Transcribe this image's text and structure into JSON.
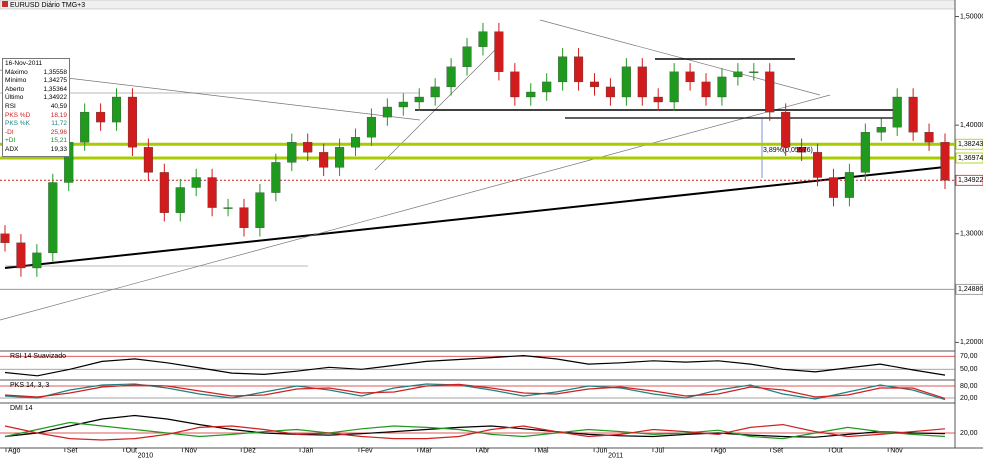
{
  "chart_data": [
    {
      "type": "candlestick",
      "title": "EURUSD Diário TMG+3",
      "categories": [
        "Ago",
        "Set",
        "Out",
        "Nov",
        "Dez",
        "Jan",
        "Fev",
        "Mar",
        "Abr",
        "Mai",
        "Jun",
        "Jul",
        "Ago",
        "Set",
        "Out",
        "Nov"
      ],
      "x_year_labels": [
        "2010",
        "2011"
      ],
      "up_color": "#1f9a1f",
      "down_color": "#d01c1c",
      "ohlc": [
        [
          1.3,
          1.308,
          1.2837,
          1.2917
        ],
        [
          1.2917,
          1.2997,
          1.2605,
          1.2685
        ],
        [
          1.2685,
          1.2904,
          1.2605,
          1.2824
        ],
        [
          1.2824,
          1.3552,
          1.2744,
          1.3472
        ],
        [
          1.3472,
          1.3923,
          1.3392,
          1.3843
        ],
        [
          1.3843,
          1.42,
          1.3763,
          1.412
        ],
        [
          1.412,
          1.42,
          1.3948,
          1.4028
        ],
        [
          1.4028,
          1.4339,
          1.3948,
          1.4259
        ],
        [
          1.4259,
          1.4339,
          1.3716,
          1.3796
        ],
        [
          1.3796,
          1.3876,
          1.3485,
          1.3565
        ],
        [
          1.3565,
          1.3645,
          1.3114,
          1.3194
        ],
        [
          1.3194,
          1.3506,
          1.3114,
          1.3426
        ],
        [
          1.3426,
          1.3598,
          1.3346,
          1.3518
        ],
        [
          1.3518,
          1.3598,
          1.3161,
          1.3241
        ],
        [
          1.3241,
          1.3321,
          1.3161,
          1.3241
        ],
        [
          1.3241,
          1.3321,
          1.2975,
          1.3055
        ],
        [
          1.3055,
          1.3459,
          1.2975,
          1.3379
        ],
        [
          1.3379,
          1.3737,
          1.3299,
          1.3657
        ],
        [
          1.3657,
          1.3923,
          1.3577,
          1.3843
        ],
        [
          1.3843,
          1.3923,
          1.367,
          1.375
        ],
        [
          1.375,
          1.383,
          1.3531,
          1.3611
        ],
        [
          1.3611,
          1.3876,
          1.3531,
          1.3796
        ],
        [
          1.3796,
          1.3969,
          1.3716,
          1.3889
        ],
        [
          1.3889,
          1.4154,
          1.3809,
          1.4074
        ],
        [
          1.4074,
          1.4247,
          1.3994,
          1.4167
        ],
        [
          1.4167,
          1.4293,
          1.4087,
          1.4213
        ],
        [
          1.4213,
          1.4339,
          1.4133,
          1.4259
        ],
        [
          1.4259,
          1.4432,
          1.4179,
          1.4352
        ],
        [
          1.4352,
          1.4617,
          1.4272,
          1.4537
        ],
        [
          1.4537,
          1.4802,
          1.4457,
          1.4722
        ],
        [
          1.4722,
          1.4941,
          1.4642,
          1.4861
        ],
        [
          1.4861,
          1.4941,
          1.4411,
          1.4491
        ],
        [
          1.4491,
          1.4571,
          1.4179,
          1.4259
        ],
        [
          1.4259,
          1.4385,
          1.4179,
          1.4305
        ],
        [
          1.4305,
          1.4478,
          1.4225,
          1.4398
        ],
        [
          1.4398,
          1.471,
          1.4318,
          1.463
        ],
        [
          1.463,
          1.471,
          1.4318,
          1.4398
        ],
        [
          1.4398,
          1.4478,
          1.4272,
          1.4352
        ],
        [
          1.4352,
          1.4432,
          1.4179,
          1.4259
        ],
        [
          1.4259,
          1.4617,
          1.4179,
          1.4537
        ],
        [
          1.4537,
          1.4617,
          1.4179,
          1.4259
        ],
        [
          1.4259,
          1.4339,
          1.4133,
          1.4213
        ],
        [
          1.4213,
          1.4571,
          1.4133,
          1.4491
        ],
        [
          1.4491,
          1.4571,
          1.4318,
          1.4398
        ],
        [
          1.4398,
          1.4478,
          1.4179,
          1.4259
        ],
        [
          1.4259,
          1.4524,
          1.4179,
          1.4444
        ],
        [
          1.4444,
          1.4571,
          1.4364,
          1.4491
        ],
        [
          1.4491,
          1.4571,
          1.4411,
          1.4491
        ],
        [
          1.4491,
          1.4571,
          1.404,
          1.412
        ],
        [
          1.412,
          1.42,
          1.3716,
          1.3796
        ],
        [
          1.3796,
          1.3876,
          1.367,
          1.375
        ],
        [
          1.375,
          1.383,
          1.3438,
          1.3518
        ],
        [
          1.3518,
          1.3598,
          1.3253,
          1.3333
        ],
        [
          1.3333,
          1.3645,
          1.3253,
          1.3565
        ],
        [
          1.3565,
          1.4015,
          1.3485,
          1.3935
        ],
        [
          1.3935,
          1.4061,
          1.3855,
          1.3981
        ],
        [
          1.3981,
          1.4339,
          1.3901,
          1.4259
        ],
        [
          1.4259,
          1.4339,
          1.3855,
          1.3935
        ],
        [
          1.3935,
          1.4015,
          1.3763,
          1.3843
        ],
        [
          1.3843,
          1.3923,
          1.3412,
          1.3492
        ]
      ],
      "ylim": [
        1.193,
        1.506
      ],
      "yticks": [
        {
          "value": 1.5,
          "label": "1,50000"
        },
        {
          "value": 1.4,
          "label": "1,40000"
        },
        {
          "value": 1.3,
          "label": "1,30000"
        },
        {
          "value": 1.2,
          "label": "1,20000"
        }
      ],
      "levels": [
        {
          "value": 1.38243,
          "label": "1,38243",
          "color": "#a8cc00"
        },
        {
          "value": 1.36974,
          "label": "1,36974",
          "color": "#a8cc00"
        },
        {
          "value": 1.34922,
          "label": "1,34922",
          "color": "#d02020"
        },
        {
          "value": 1.24886,
          "label": "1,24886",
          "color": "#888888"
        }
      ],
      "annotations": [
        "3,89%(0,05576)"
      ]
    },
    {
      "type": "line",
      "title": "RSI 14 Suavizado",
      "ylim": [
        35,
        75
      ],
      "yticks": [
        {
          "value": 70,
          "label": "70,00"
        },
        {
          "value": 50,
          "label": "50,00"
        }
      ],
      "series": [
        {
          "color": "#000000",
          "values": [
            45,
            40,
            50,
            62,
            66,
            60,
            52,
            44,
            42,
            47,
            53,
            50,
            56,
            62,
            65,
            68,
            71,
            66,
            58,
            60,
            63,
            61,
            63,
            58,
            50,
            46,
            52,
            58,
            49,
            41
          ]
        }
      ]
    },
    {
      "type": "line",
      "title": "PKS 14, 3, 3",
      "ylim": [
        0,
        100
      ],
      "yticks": [
        {
          "value": 80,
          "label": "80,00"
        },
        {
          "value": 20,
          "label": "20,00"
        }
      ],
      "series": [
        {
          "color": "#208080",
          "values": [
            30,
            20,
            60,
            85,
            90,
            70,
            40,
            20,
            50,
            80,
            60,
            30,
            70,
            90,
            85,
            60,
            30,
            50,
            80,
            70,
            40,
            20,
            60,
            85,
            40,
            15,
            50,
            85,
            60,
            12
          ]
        },
        {
          "color": "#d02020",
          "values": [
            35,
            25,
            45,
            75,
            85,
            80,
            55,
            30,
            35,
            65,
            70,
            45,
            50,
            80,
            88,
            70,
            45,
            40,
            65,
            75,
            55,
            30,
            40,
            75,
            60,
            25,
            35,
            70,
            70,
            18
          ]
        }
      ]
    },
    {
      "type": "line",
      "title": "DMI 14",
      "ylim": [
        0,
        60
      ],
      "yticks": [
        {
          "value": 20,
          "label": "20,00"
        }
      ],
      "series": [
        {
          "color": "#000000",
          "values": [
            15,
            20,
            30,
            40,
            45,
            40,
            32,
            25,
            20,
            18,
            17,
            19,
            22,
            25,
            28,
            30,
            26,
            22,
            18,
            16,
            15,
            18,
            20,
            17,
            15,
            14,
            18,
            22,
            20,
            19
          ]
        },
        {
          "color": "#1f9a1f",
          "values": [
            15,
            25,
            35,
            30,
            25,
            20,
            15,
            18,
            22,
            25,
            20,
            26,
            30,
            28,
            25,
            18,
            15,
            20,
            25,
            22,
            18,
            20,
            24,
            15,
            12,
            20,
            28,
            22,
            18,
            15
          ]
        },
        {
          "color": "#d02020",
          "values": [
            30,
            20,
            12,
            10,
            12,
            18,
            28,
            30,
            25,
            18,
            20,
            15,
            12,
            12,
            15,
            25,
            30,
            22,
            15,
            18,
            25,
            22,
            18,
            28,
            32,
            22,
            15,
            18,
            22,
            26
          ]
        }
      ]
    }
  ],
  "info_panel": {
    "date": "16-Nov-2011",
    "rows": [
      [
        "Máximo",
        "1,35558"
      ],
      [
        "Mínimo",
        "1,34275"
      ],
      [
        "Aberto",
        "1,35364"
      ],
      [
        "Último",
        "1,34922"
      ],
      [
        "RSI",
        "40,59"
      ],
      [
        "PKS %D",
        "18,19"
      ],
      [
        "PKS %K",
        "11,72"
      ],
      [
        "-DI",
        "25,96"
      ],
      [
        "+DI",
        "15,21"
      ],
      [
        "ADX",
        "19,33"
      ]
    ]
  }
}
